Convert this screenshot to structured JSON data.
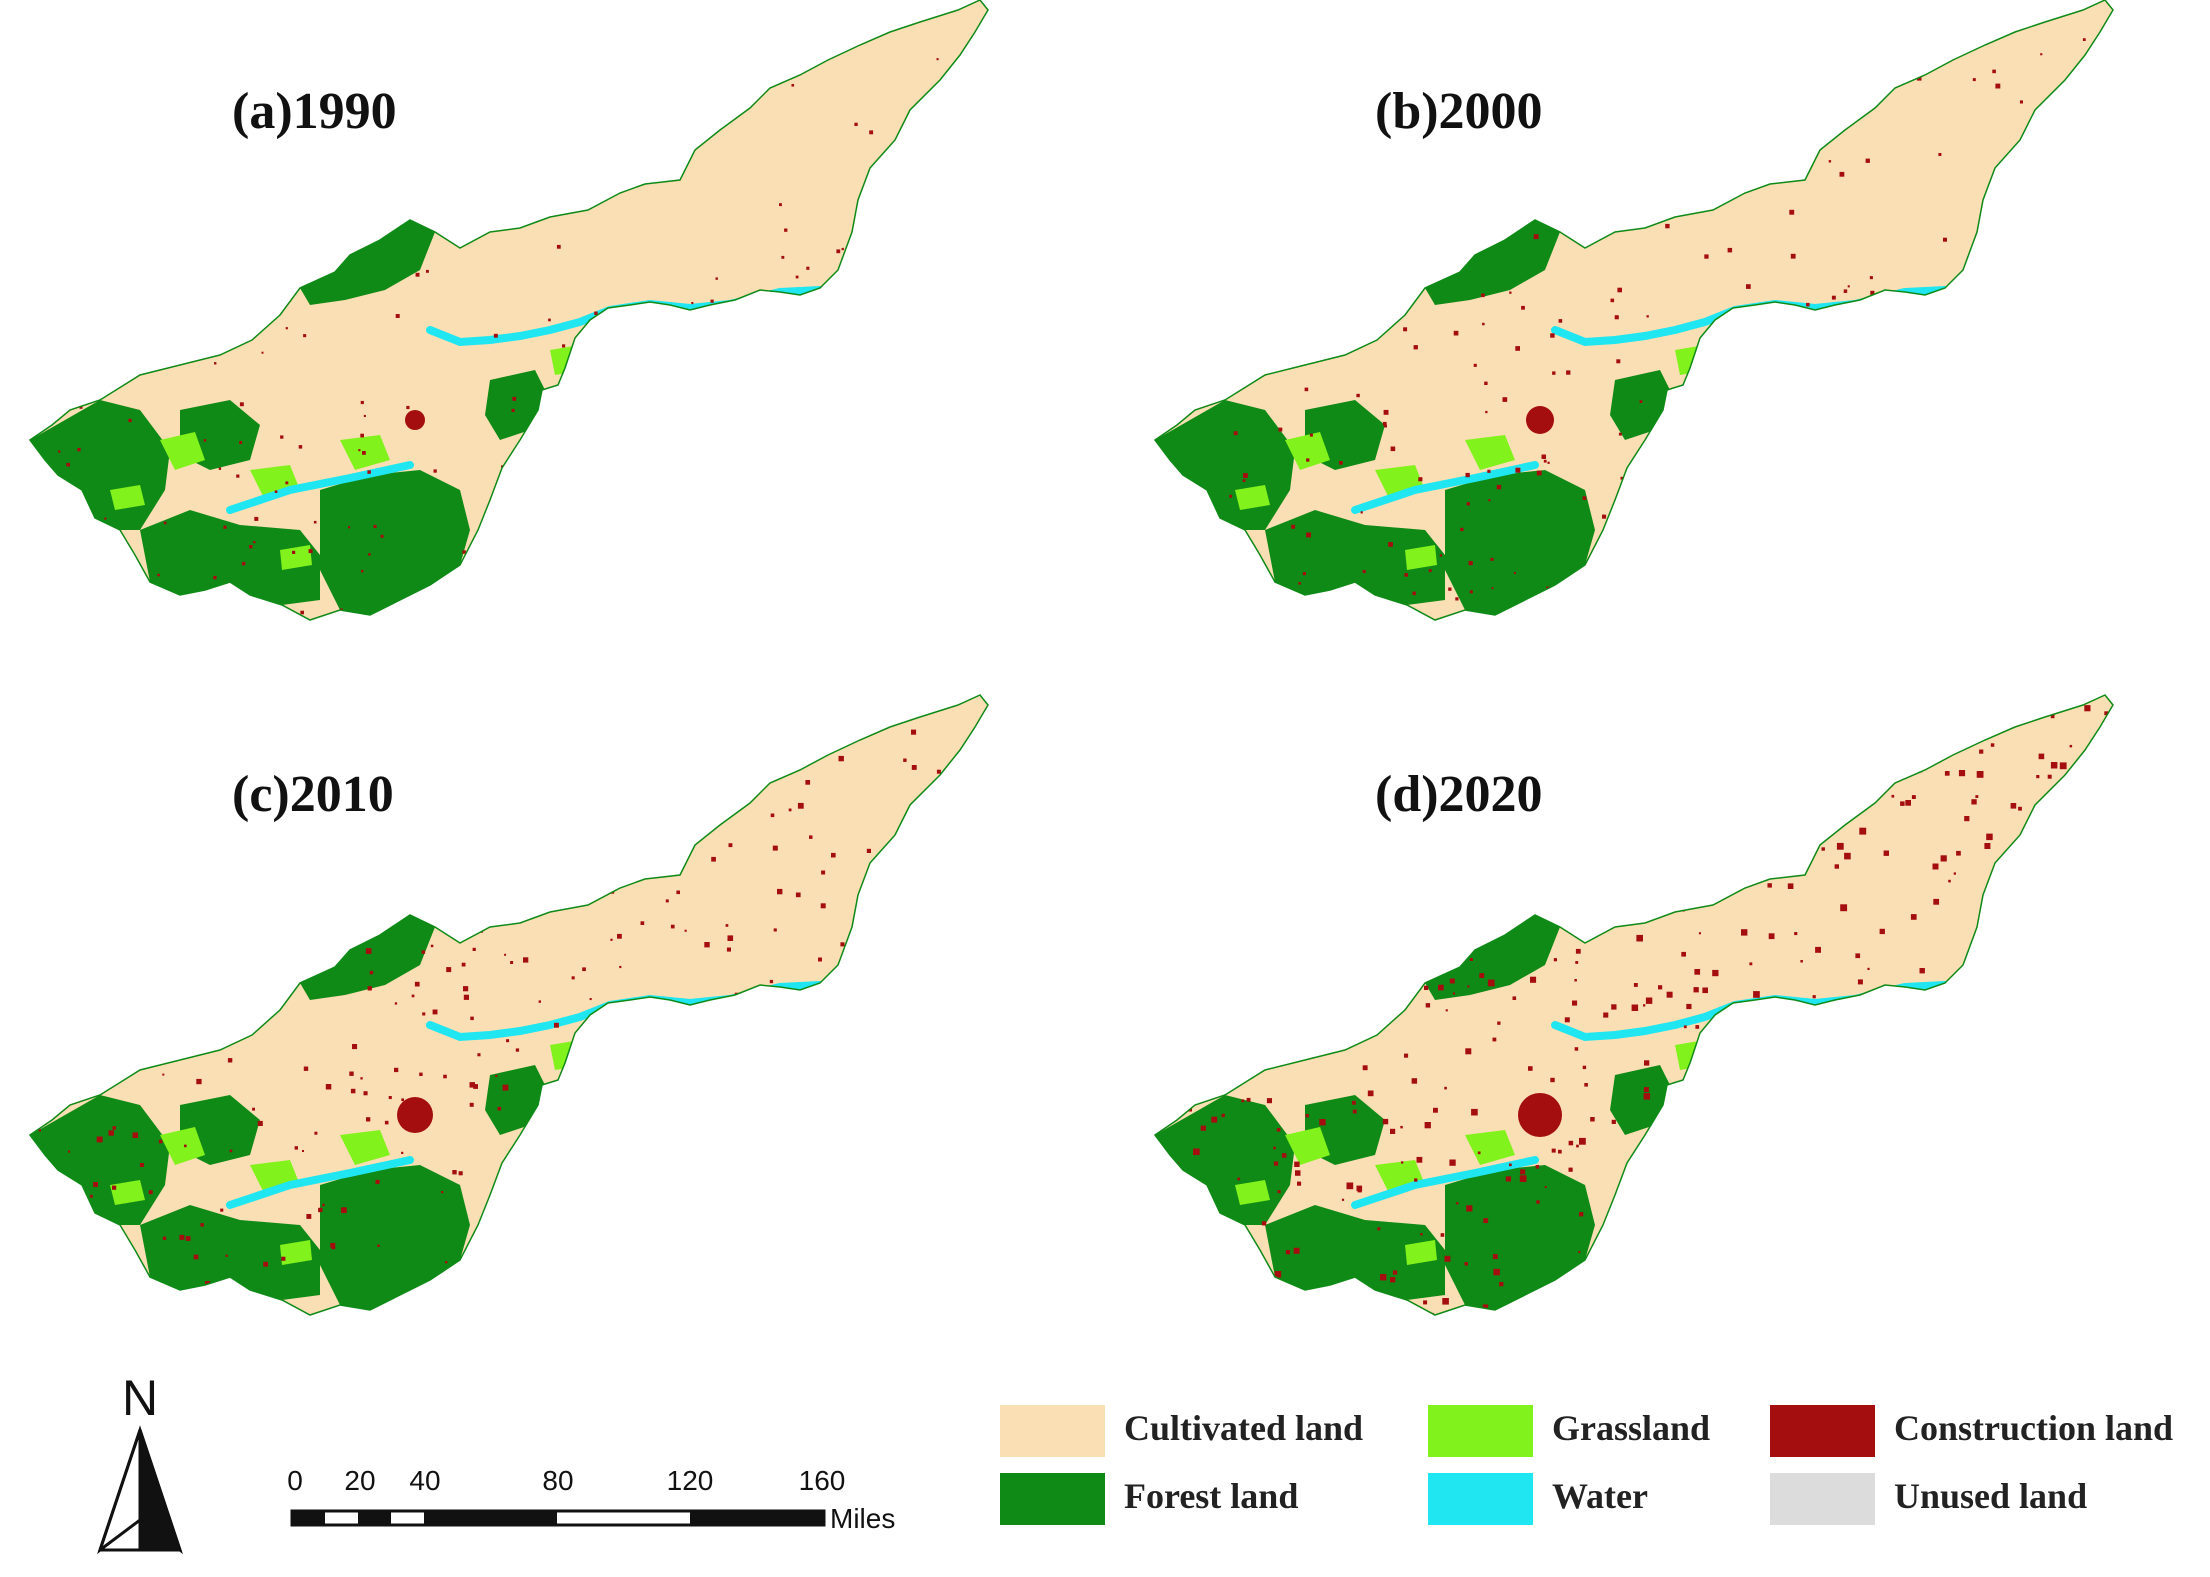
{
  "panels": [
    {
      "title": "(a)1990"
    },
    {
      "title": "(b)2000"
    },
    {
      "title": "(c)2010"
    },
    {
      "title": "(d)2020"
    }
  ],
  "colors": {
    "cultivated": "#fbdfb4",
    "forest": "#0f8a17",
    "grassland": "#82f21c",
    "water": "#1fe6f0",
    "construction": "#a40e0e",
    "unused": "#dcdcdc"
  },
  "legend": {
    "items": [
      {
        "label": "Cultivated land",
        "color": "#fbdfb4"
      },
      {
        "label": "Grassland",
        "color": "#82f21c"
      },
      {
        "label": "Construction land",
        "color": "#a40e0e"
      },
      {
        "label": "Forest land",
        "color": "#0f8a17"
      },
      {
        "label": "Water",
        "color": "#1fe6f0"
      },
      {
        "label": "Unused land",
        "color": "#dcdcdc"
      }
    ]
  },
  "north_arrow": {
    "label": "N"
  },
  "scale_bar": {
    "ticks": [
      "0",
      "20",
      "40",
      "80",
      "120",
      "160"
    ],
    "unit": "Miles"
  }
}
